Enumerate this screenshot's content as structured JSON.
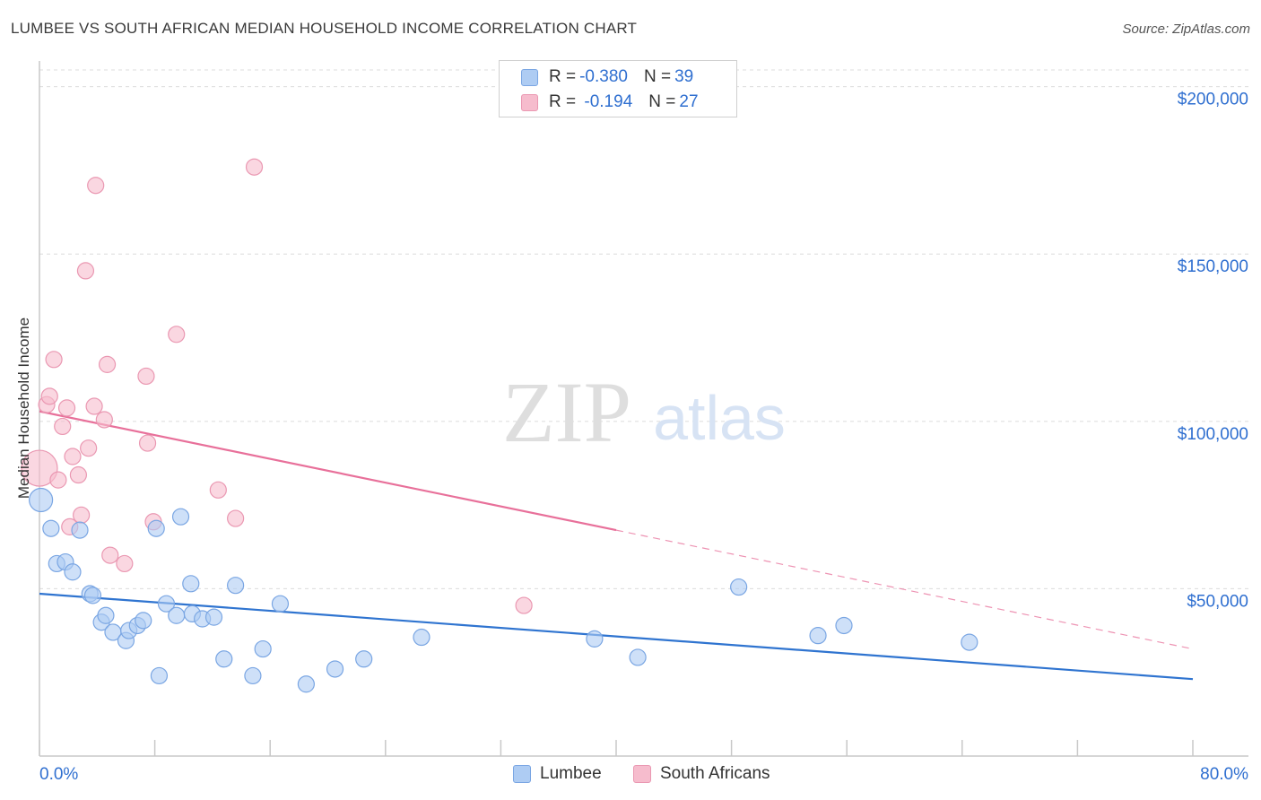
{
  "header": {
    "title": "LUMBEE VS SOUTH AFRICAN MEDIAN HOUSEHOLD INCOME CORRELATION CHART",
    "source": "Source: ZipAtlas.com"
  },
  "watermark": {
    "zip": "ZIP",
    "atlas": "atlas"
  },
  "legend": {
    "rows": [
      {
        "r_label": "R = ",
        "r_value": "-0.380",
        "n_label": "N = ",
        "n_value": "39"
      },
      {
        "r_label": "R = ",
        "r_value": " -0.194",
        "n_label": "N = ",
        "n_value": "27"
      }
    ]
  },
  "bottom_legend": {
    "series_a": "Lumbee",
    "series_b": "South Africans"
  },
  "colors": {
    "blue_fill": "#aeccf3",
    "blue_stroke": "#7aa6e3",
    "blue_line": "#2f74d0",
    "pink_fill": "#f6bccd",
    "pink_stroke": "#ea98b2",
    "pink_line": "#e8709a",
    "axis_label_blue": "#2f6fd0",
    "grid": "#dcdcdc"
  },
  "chart_data": {
    "type": "scatter",
    "title": "LUMBEE VS SOUTH AFRICAN MEDIAN HOUSEHOLD INCOME CORRELATION CHART",
    "xlabel": "",
    "ylabel": "Median Household Income",
    "xlim": [
      0,
      80
    ],
    "ylim": [
      0,
      205000
    ],
    "x_tick_labels": [
      "0.0%",
      "80.0%"
    ],
    "y_ticks": [
      50000,
      100000,
      150000,
      200000
    ],
    "y_tick_labels": [
      "$50,000",
      "$100,000",
      "$150,000",
      "$200,000"
    ],
    "grid": true,
    "legend_position": "top-center",
    "series": [
      {
        "name": "Lumbee",
        "color": "#aeccf3",
        "points": [
          [
            0.1,
            76500
          ],
          [
            0.8,
            68000
          ],
          [
            1.2,
            57500
          ],
          [
            1.8,
            58000
          ],
          [
            2.3,
            55000
          ],
          [
            2.8,
            67500
          ],
          [
            3.5,
            48500
          ],
          [
            3.7,
            48000
          ],
          [
            4.3,
            40000
          ],
          [
            4.6,
            42000
          ],
          [
            5.1,
            37000
          ],
          [
            6.0,
            34500
          ],
          [
            6.2,
            37500
          ],
          [
            6.8,
            39000
          ],
          [
            7.2,
            40500
          ],
          [
            8.1,
            68000
          ],
          [
            8.3,
            24000
          ],
          [
            8.8,
            45500
          ],
          [
            9.5,
            42000
          ],
          [
            9.8,
            71500
          ],
          [
            10.5,
            51500
          ],
          [
            10.6,
            42500
          ],
          [
            11.3,
            41000
          ],
          [
            12.1,
            41500
          ],
          [
            12.8,
            29000
          ],
          [
            13.6,
            51000
          ],
          [
            14.8,
            24000
          ],
          [
            15.5,
            32000
          ],
          [
            16.7,
            45500
          ],
          [
            18.5,
            21500
          ],
          [
            20.5,
            26000
          ],
          [
            22.5,
            29000
          ],
          [
            26.5,
            35500
          ],
          [
            38.5,
            35000
          ],
          [
            41.5,
            29500
          ],
          [
            48.5,
            50500
          ],
          [
            54.0,
            36000
          ],
          [
            55.8,
            39000
          ],
          [
            64.5,
            34000
          ]
        ],
        "trend": {
          "x": [
            0,
            80
          ],
          "y": [
            48500,
            23000
          ]
        }
      },
      {
        "name": "South Africans",
        "color": "#f6bccd",
        "points": [
          [
            0.0,
            86000
          ],
          [
            0.5,
            105000
          ],
          [
            0.7,
            107500
          ],
          [
            1.0,
            118500
          ],
          [
            1.3,
            82500
          ],
          [
            1.6,
            98500
          ],
          [
            1.9,
            104000
          ],
          [
            2.1,
            68500
          ],
          [
            2.3,
            89500
          ],
          [
            2.7,
            84000
          ],
          [
            2.9,
            72000
          ],
          [
            3.2,
            145000
          ],
          [
            3.4,
            92000
          ],
          [
            3.8,
            104500
          ],
          [
            3.9,
            170500
          ],
          [
            4.5,
            100500
          ],
          [
            4.7,
            117000
          ],
          [
            4.9,
            60000
          ],
          [
            5.9,
            57500
          ],
          [
            7.4,
            113500
          ],
          [
            7.5,
            93500
          ],
          [
            7.9,
            70000
          ],
          [
            9.5,
            126000
          ],
          [
            12.4,
            79500
          ],
          [
            13.6,
            71000
          ],
          [
            14.9,
            176000
          ],
          [
            33.6,
            45000
          ]
        ],
        "trend": {
          "x": [
            0,
            40
          ],
          "y": [
            103000,
            67500
          ],
          "dashed_extension": {
            "x": [
              40,
              80
            ],
            "y": [
              67500,
              32000
            ]
          }
        }
      }
    ]
  }
}
